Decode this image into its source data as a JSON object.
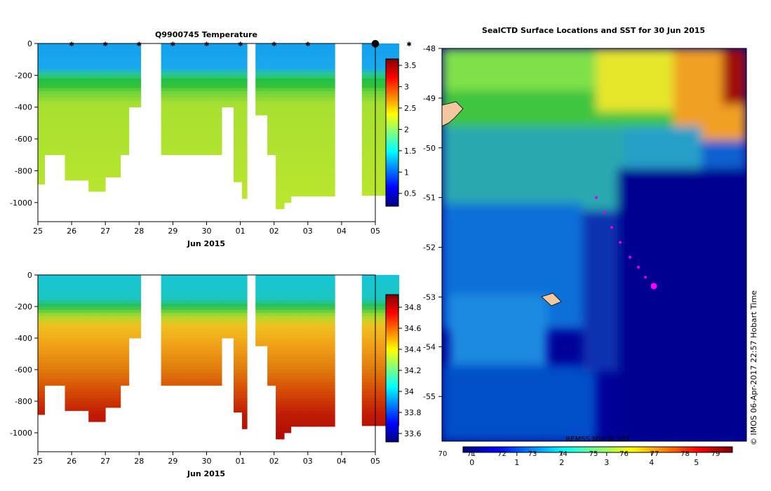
{
  "chart_data": [
    {
      "type": "heatmap",
      "title": "Q9900745  Temperature",
      "xlabel": "Jun 2015",
      "ylabel": "",
      "x_ticks": [
        "25",
        "26",
        "27",
        "28",
        "29",
        "30",
        "01",
        "02",
        "03",
        "04",
        "05"
      ],
      "y_ticks": [
        "0",
        "-200",
        "-400",
        "-600",
        "-800",
        "-1000"
      ],
      "ylim": [
        -1120,
        0
      ],
      "colorbar_ticks": [
        "0.5",
        "1",
        "1.5",
        "2",
        "2.5",
        "3",
        "3.5"
      ],
      "colorbar_range": [
        0.2,
        3.65
      ],
      "profile_marker_days": [
        1.0,
        2.0,
        3.0,
        4.0,
        5.0,
        6.0,
        7.0,
        8.0,
        10.0,
        11.0
      ],
      "profiles": [
        {
          "start": 0.0,
          "end": 0.2,
          "depth": -885
        },
        {
          "start": 0.2,
          "end": 0.8,
          "depth": -700
        },
        {
          "start": 0.8,
          "end": 1.5,
          "depth": -860
        },
        {
          "start": 1.5,
          "end": 2.0,
          "depth": -930
        },
        {
          "start": 2.0,
          "end": 2.45,
          "depth": -840
        },
        {
          "start": 2.45,
          "end": 2.7,
          "depth": -700
        },
        {
          "start": 2.7,
          "end": 3.05,
          "depth": -400
        },
        {
          "start": 3.65,
          "end": 4.5,
          "depth": -700
        },
        {
          "start": 4.5,
          "end": 5.45,
          "depth": -700
        },
        {
          "start": 5.45,
          "end": 5.8,
          "depth": -400
        },
        {
          "start": 5.8,
          "end": 6.05,
          "depth": -870
        },
        {
          "start": 6.05,
          "end": 6.2,
          "depth": -975
        },
        {
          "start": 6.45,
          "end": 6.8,
          "depth": -450
        },
        {
          "start": 6.8,
          "end": 7.05,
          "depth": -700
        },
        {
          "start": 7.05,
          "end": 7.3,
          "depth": -1040
        },
        {
          "start": 7.3,
          "end": 7.5,
          "depth": -1000
        },
        {
          "start": 7.5,
          "end": 7.75,
          "depth": -960
        },
        {
          "start": 7.75,
          "end": 8.1,
          "depth": -960
        },
        {
          "start": 8.1,
          "end": 8.8,
          "depth": -960
        },
        {
          "start": 9.6,
          "end": 10.7,
          "depth": -955
        }
      ]
    },
    {
      "type": "heatmap",
      "title": "",
      "xlabel": "Jun 2015",
      "ylabel": "",
      "x_ticks": [
        "25",
        "26",
        "27",
        "28",
        "29",
        "30",
        "01",
        "02",
        "03",
        "04",
        "05"
      ],
      "y_ticks": [
        "0",
        "-200",
        "-400",
        "-600",
        "-800",
        "-1000"
      ],
      "ylim": [
        -1120,
        0
      ],
      "colorbar_ticks": [
        "33.6",
        "33.8",
        "34",
        "34.2",
        "34.4",
        "34.6",
        "34.8"
      ],
      "colorbar_range": [
        33.52,
        34.92
      ],
      "profiles_same_as_panel": 0
    },
    {
      "type": "heatmap",
      "title": "SealCTD Surface Locations and SST for 30 Jun 2015",
      "xlabel": "",
      "ylabel": "",
      "y_ticks": [
        "-48",
        "-49",
        "-50",
        "-51",
        "-52",
        "-53",
        "-54",
        "-55"
      ],
      "ylim": [
        -55.9,
        -48
      ],
      "colorbar_label": "REMSS MW-IR SST",
      "colorbar_ticks_celsius": [
        "0",
        "1",
        "2",
        "3",
        "4",
        "5"
      ],
      "colorbar_ticks_fahrenheit": [
        "70",
        "71",
        "72",
        "73",
        "74",
        "75",
        "76",
        "77",
        "78",
        "79"
      ],
      "colorbar_range": [
        -0.2,
        5.8
      ],
      "seal_track_lat": [
        -51.0,
        -51.3,
        -51.6,
        -51.9,
        -52.2,
        -52.4,
        -52.6,
        -52.8
      ],
      "seal_latest_lat": -52.78
    }
  ],
  "credit": "© IMOS 06-Apr-2017 22:57 Hobart Time"
}
